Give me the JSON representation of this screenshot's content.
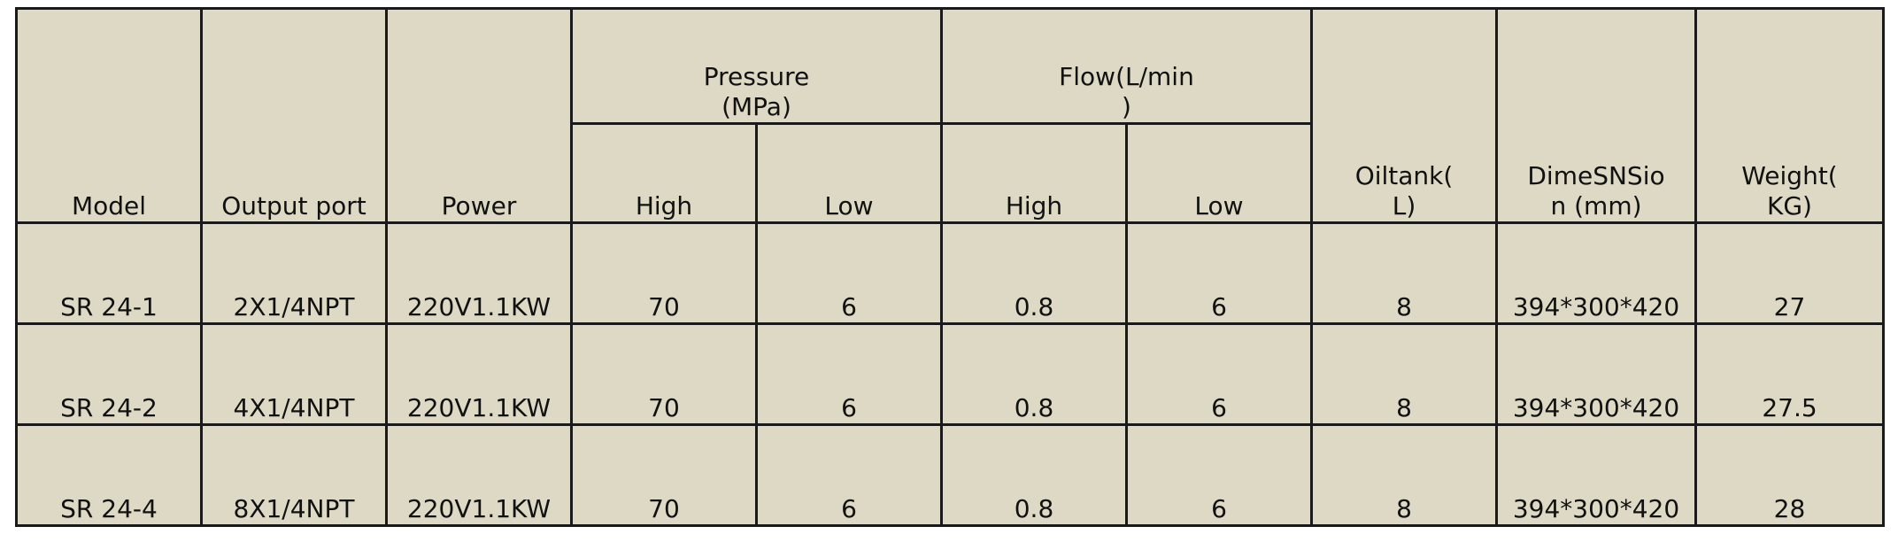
{
  "table": {
    "headers": {
      "model": "Model",
      "output_port": "Output port",
      "power": "Power",
      "pressure": "Pressure\n(MPa)",
      "flow": "Flow(L/min\n)",
      "oiltank": "Oiltank(\nL)",
      "dimension": "DimeSNSio\nn (mm)",
      "weight": "Weight(\nKG)",
      "pressure_high": "High",
      "pressure_low": "Low",
      "flow_high": "High",
      "flow_low": "Low"
    },
    "rows": [
      {
        "model": "SR 24-1",
        "output_port": "2X1/4NPT",
        "power": "220V1.1KW",
        "pressure_high": "70",
        "pressure_low": "6",
        "flow_high": "0.8",
        "flow_low": "6",
        "oiltank": "8",
        "dimension": "394*300*420",
        "weight": "27"
      },
      {
        "model": "SR 24-2",
        "output_port": "4X1/4NPT",
        "power": "220V1.1KW",
        "pressure_high": "70",
        "pressure_low": "6",
        "flow_high": "0.8",
        "flow_low": "6",
        "oiltank": "8",
        "dimension": "394*300*420",
        "weight": "27.5"
      },
      {
        "model": "SR 24-4",
        "output_port": "8X1/4NPT",
        "power": "220V1.1KW",
        "pressure_high": "70",
        "pressure_low": "6",
        "flow_high": "0.8",
        "flow_low": "6",
        "oiltank": "8",
        "dimension": "394*300*420",
        "weight": "28"
      }
    ]
  }
}
